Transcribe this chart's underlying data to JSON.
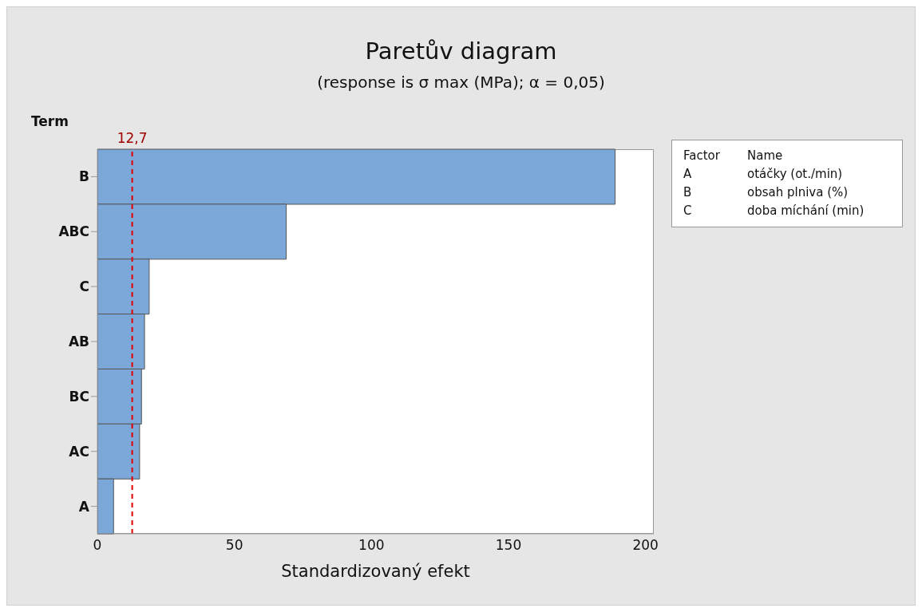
{
  "chart_data": {
    "type": "bar",
    "orientation": "horizontal",
    "title": "Paretův diagram",
    "subtitle": "(response is σ max (MPa); α = 0,05)",
    "xlabel": "Standardizovaný efekt",
    "ylabel": "Term",
    "categories": [
      "B",
      "ABC",
      "C",
      "AB",
      "BC",
      "AC",
      "A"
    ],
    "values": [
      188.9,
      68.9,
      18.9,
      17.2,
      16.1,
      15.4,
      5.9
    ],
    "color": "#7ba7d9",
    "xlim": [
      0,
      203
    ],
    "xticks": [
      0,
      50,
      100,
      150,
      200
    ],
    "grid": false,
    "ref_lines": [
      {
        "axis": "x",
        "value": 12.7,
        "label": "12,7",
        "color": "#e00000",
        "line_style": "dashed"
      }
    ],
    "annotations": [
      "Factor",
      "Name",
      "A",
      "otáčky (ot./min)",
      "B",
      "obsah plniva (%)",
      "C",
      "doba míchání (min)"
    ]
  }
}
